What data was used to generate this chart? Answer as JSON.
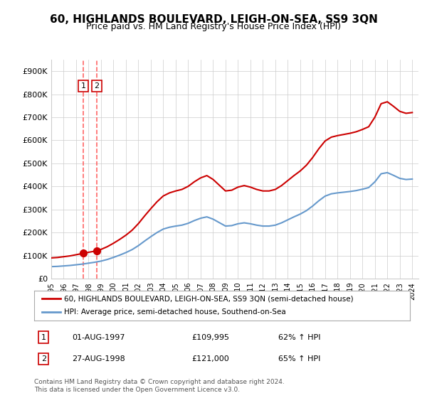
{
  "title": "60, HIGHLANDS BOULEVARD, LEIGH-ON-SEA, SS9 3QN",
  "subtitle": "Price paid vs. HM Land Registry's House Price Index (HPI)",
  "red_label": "60, HIGHLANDS BOULEVARD, LEIGH-ON-SEA, SS9 3QN (semi-detached house)",
  "blue_label": "HPI: Average price, semi-detached house, Southend-on-Sea",
  "footnote": "Contains HM Land Registry data © Crown copyright and database right 2024.\nThis data is licensed under the Open Government Licence v3.0.",
  "sale1_date": "01-AUG-1997",
  "sale1_price": 109995,
  "sale1_hpi": "62% ↑ HPI",
  "sale2_date": "27-AUG-1998",
  "sale2_price": 121000,
  "sale2_hpi": "65% ↑ HPI",
  "ylim": [
    0,
    950000
  ],
  "yticks": [
    0,
    100000,
    200000,
    300000,
    400000,
    500000,
    600000,
    700000,
    800000,
    900000
  ],
  "ytick_labels": [
    "£0",
    "£100K",
    "£200K",
    "£300K",
    "£400K",
    "£500K",
    "£600K",
    "£700K",
    "£800K",
    "£900K"
  ],
  "red_color": "#cc0000",
  "blue_color": "#6699cc",
  "dashed_color": "#ff6666",
  "grid_color": "#cccccc",
  "background_color": "#ffffff",
  "sale1_x": 1997.583,
  "sale2_x": 1998.653
}
